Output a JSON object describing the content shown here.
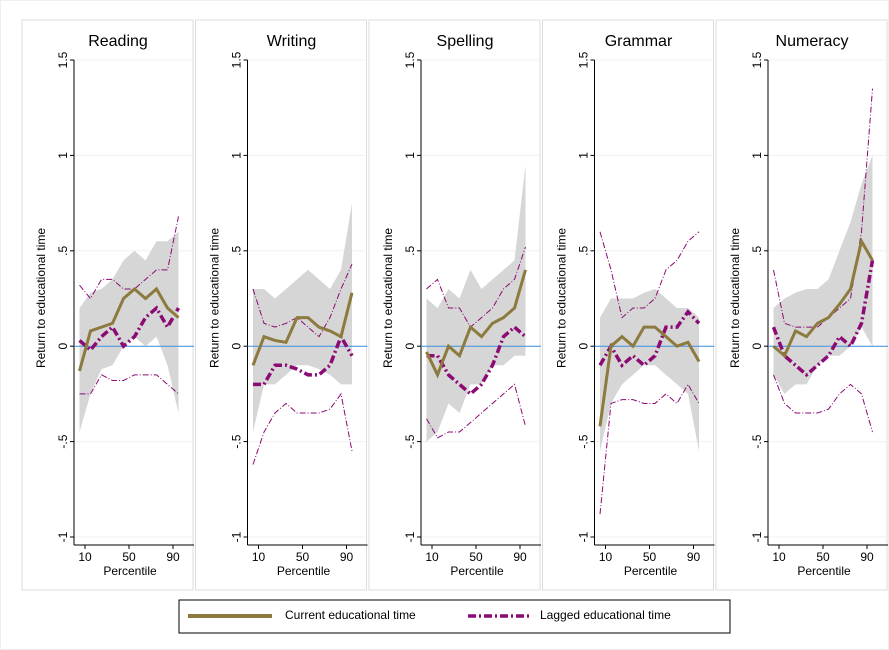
{
  "chart_data": [
    {
      "type": "line",
      "title": "Reading",
      "x_label": "Percentile",
      "y_label": "Return to educational time",
      "x": [
        5,
        15,
        25,
        35,
        45,
        55,
        65,
        75,
        85,
        95
      ],
      "xlim": [
        0,
        100
      ],
      "xticks": [
        10,
        50,
        90
      ],
      "ylim": [
        -1,
        1.5
      ],
      "yticks": [
        -1,
        {
          "value": -0.5,
          "label": "-.5"
        },
        0,
        {
          "value": 0.5,
          "label": ".5"
        },
        1,
        1.5
      ],
      "grid": true,
      "reference_line": 0,
      "reference_color": "#3d8fe0",
      "series": [
        {
          "name": "Current educational time",
          "color": "#8c7a3e",
          "band_color": "#d6d6d6",
          "values": [
            -0.13,
            0.08,
            0.1,
            0.12,
            0.25,
            0.3,
            0.25,
            0.3,
            0.2,
            0.15
          ],
          "lower": [
            -0.45,
            -0.25,
            -0.12,
            -0.1,
            0.0,
            0.05,
            0.0,
            0.05,
            -0.1,
            -0.35
          ],
          "upper": [
            0.2,
            0.28,
            0.3,
            0.35,
            0.45,
            0.5,
            0.45,
            0.55,
            0.55,
            0.6
          ]
        },
        {
          "name": "Lagged educational time",
          "color": "#8b0a74",
          "values": [
            0.03,
            -0.02,
            0.05,
            0.1,
            0.0,
            0.05,
            0.15,
            0.2,
            0.1,
            0.2
          ],
          "lower": [
            -0.25,
            -0.25,
            -0.15,
            -0.18,
            -0.18,
            -0.15,
            -0.15,
            -0.15,
            -0.2,
            -0.25
          ],
          "upper": [
            0.32,
            0.25,
            0.35,
            0.35,
            0.3,
            0.3,
            0.35,
            0.4,
            0.4,
            0.68
          ]
        }
      ]
    },
    {
      "type": "line",
      "title": "Writing",
      "x_label": "Percentile",
      "y_label": "Return to educational time",
      "x": [
        5,
        15,
        25,
        35,
        45,
        55,
        65,
        75,
        85,
        95
      ],
      "xlim": [
        0,
        100
      ],
      "xticks": [
        10,
        50,
        90
      ],
      "ylim": [
        -1,
        1.5
      ],
      "yticks": [
        -1,
        {
          "value": -0.5,
          "label": "-.5"
        },
        0,
        {
          "value": 0.5,
          "label": ".5"
        },
        1,
        1.5
      ],
      "grid": true,
      "reference_line": 0,
      "reference_color": "#3d8fe0",
      "series": [
        {
          "color": "#8c7a3e",
          "band_color": "#d6d6d6",
          "values": [
            -0.1,
            0.05,
            0.03,
            0.02,
            0.15,
            0.15,
            0.1,
            0.08,
            0.05,
            0.28
          ],
          "lower": [
            -0.45,
            -0.2,
            -0.2,
            -0.15,
            -0.1,
            -0.1,
            -0.12,
            -0.15,
            -0.2,
            -0.2
          ],
          "upper": [
            0.3,
            0.3,
            0.25,
            0.3,
            0.35,
            0.4,
            0.35,
            0.3,
            0.4,
            0.75
          ]
        },
        {
          "color": "#8b0a74",
          "values": [
            -0.2,
            -0.2,
            -0.1,
            -0.1,
            -0.12,
            -0.15,
            -0.15,
            -0.1,
            0.05,
            -0.05
          ],
          "lower": [
            -0.62,
            -0.45,
            -0.35,
            -0.3,
            -0.35,
            -0.35,
            -0.35,
            -0.33,
            -0.25,
            -0.55
          ],
          "upper": [
            0.3,
            0.12,
            0.1,
            0.12,
            0.15,
            0.1,
            0.05,
            0.15,
            0.3,
            0.43
          ]
        }
      ]
    },
    {
      "type": "line",
      "title": "Spelling",
      "x_label": "Percentile",
      "y_label": "Return to educational time",
      "x": [
        5,
        15,
        25,
        35,
        45,
        55,
        65,
        75,
        85,
        95
      ],
      "xlim": [
        0,
        100
      ],
      "xticks": [
        10,
        50,
        90
      ],
      "ylim": [
        -1,
        1.5
      ],
      "yticks": [
        -1,
        {
          "value": -0.5,
          "label": "-.5"
        },
        0,
        {
          "value": 0.5,
          "label": ".5"
        },
        1,
        1.5
      ],
      "grid": true,
      "reference_line": 0,
      "reference_color": "#3d8fe0",
      "series": [
        {
          "color": "#8c7a3e",
          "band_color": "#d6d6d6",
          "values": [
            -0.03,
            -0.15,
            0.0,
            -0.05,
            0.1,
            0.05,
            0.12,
            0.15,
            0.2,
            0.4
          ],
          "lower": [
            -0.5,
            -0.45,
            -0.3,
            -0.35,
            -0.2,
            -0.2,
            -0.1,
            -0.1,
            -0.05,
            -0.05
          ],
          "upper": [
            0.25,
            0.2,
            0.3,
            0.25,
            0.4,
            0.3,
            0.35,
            0.4,
            0.45,
            0.95
          ]
        },
        {
          "color": "#8b0a74",
          "values": [
            -0.05,
            -0.05,
            -0.15,
            -0.2,
            -0.25,
            -0.2,
            -0.1,
            0.05,
            0.1,
            0.05
          ],
          "lower": [
            -0.38,
            -0.48,
            -0.45,
            -0.45,
            -0.4,
            -0.35,
            -0.3,
            -0.25,
            -0.2,
            -0.42
          ],
          "upper": [
            0.3,
            0.35,
            0.2,
            0.2,
            0.1,
            0.15,
            0.2,
            0.3,
            0.35,
            0.52
          ]
        }
      ]
    },
    {
      "type": "line",
      "title": "Grammar",
      "x_label": "Percentile",
      "y_label": "Return to educational time",
      "x": [
        5,
        15,
        25,
        35,
        45,
        55,
        65,
        75,
        85,
        95
      ],
      "xlim": [
        0,
        100
      ],
      "xticks": [
        10,
        50,
        90
      ],
      "ylim": [
        -1,
        1.5
      ],
      "yticks": [
        -1,
        {
          "value": -0.5,
          "label": "-.5"
        },
        0,
        {
          "value": 0.5,
          "label": ".5"
        },
        1,
        1.5
      ],
      "grid": true,
      "reference_line": 0,
      "reference_color": "#3d8fe0",
      "series": [
        {
          "color": "#8c7a3e",
          "band_color": "#d6d6d6",
          "values": [
            -0.42,
            0.0,
            0.05,
            0.0,
            0.1,
            0.1,
            0.05,
            0.0,
            0.02,
            -0.08
          ],
          "lower": [
            -0.55,
            -0.3,
            -0.2,
            -0.15,
            -0.1,
            -0.1,
            -0.15,
            -0.2,
            -0.25,
            -0.55
          ],
          "upper": [
            0.15,
            0.25,
            0.25,
            0.25,
            0.28,
            0.3,
            0.25,
            0.2,
            0.2,
            0.15
          ]
        },
        {
          "color": "#8b0a74",
          "values": [
            -0.1,
            0.0,
            -0.1,
            -0.05,
            -0.1,
            -0.05,
            0.1,
            0.1,
            0.18,
            0.12
          ],
          "lower": [
            -0.88,
            -0.3,
            -0.28,
            -0.28,
            -0.3,
            -0.3,
            -0.25,
            -0.3,
            -0.2,
            -0.3
          ],
          "upper": [
            0.6,
            0.4,
            0.15,
            0.2,
            0.2,
            0.25,
            0.4,
            0.45,
            0.55,
            0.6
          ]
        }
      ]
    },
    {
      "type": "line",
      "title": "Numeracy",
      "x_label": "Percentile",
      "y_label": "Return to educational time",
      "x": [
        5,
        15,
        25,
        35,
        45,
        55,
        65,
        75,
        85,
        95
      ],
      "xlim": [
        0,
        100
      ],
      "xticks": [
        10,
        50,
        90
      ],
      "ylim": [
        -1,
        1.5
      ],
      "yticks": [
        -1,
        {
          "value": -0.5,
          "label": "-.5"
        },
        0,
        {
          "value": 0.5,
          "label": ".5"
        },
        1,
        1.5
      ],
      "grid": true,
      "reference_line": 0,
      "reference_color": "#3d8fe0",
      "series": [
        {
          "color": "#8c7a3e",
          "band_color": "#d6d6d6",
          "values": [
            0.0,
            -0.05,
            0.08,
            0.05,
            0.12,
            0.15,
            0.22,
            0.3,
            0.55,
            0.45
          ],
          "lower": [
            -0.15,
            -0.25,
            -0.2,
            -0.2,
            -0.1,
            -0.05,
            -0.05,
            0.0,
            0.1,
            0.0
          ],
          "upper": [
            0.2,
            0.25,
            0.28,
            0.3,
            0.3,
            0.35,
            0.5,
            0.65,
            0.85,
            1.0
          ]
        },
        {
          "color": "#8b0a74",
          "values": [
            0.1,
            -0.05,
            -0.1,
            -0.15,
            -0.1,
            -0.05,
            0.05,
            0.0,
            0.12,
            0.45
          ],
          "lower": [
            -0.15,
            -0.3,
            -0.35,
            -0.35,
            -0.35,
            -0.33,
            -0.25,
            -0.2,
            -0.25,
            -0.45
          ],
          "upper": [
            0.4,
            0.12,
            0.1,
            0.1,
            0.1,
            0.15,
            0.2,
            0.25,
            0.6,
            1.35
          ]
        }
      ]
    }
  ]
}
